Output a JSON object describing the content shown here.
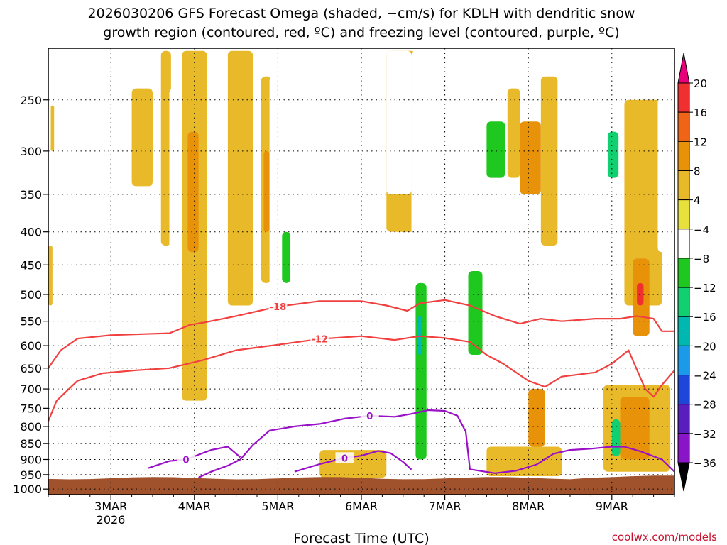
{
  "title_line1": "2026030206 GFS Forecast Omega (shaded, −cm/s) for KDLH with dendritic snow",
  "title_line2": "growth region (contoured, red, ºC) and freezing level (contoured, purple, ºC)",
  "xlabel": "Forecast Time (UTC)",
  "credit": "coolwx.com/models",
  "chart_data": {
    "type": "heatmap",
    "title": "2026030206 GFS Forecast Omega (shaded, −cm/s) for KDLH with dendritic snow growth region (contoured, red, ºC) and freezing level (contoured, purple, ºC)",
    "xlabel": "Forecast Time (UTC)",
    "ylabel": "",
    "y_axis": {
      "scale": "pressure (hPa), inverted",
      "ticks": [
        250,
        300,
        350,
        400,
        450,
        500,
        550,
        600,
        650,
        700,
        750,
        800,
        850,
        900,
        950,
        1000
      ],
      "tick_labels": [
        "250",
        "300",
        "350",
        "400",
        "450",
        "500",
        "550",
        "600",
        "650",
        "700",
        "750",
        "800",
        "850",
        "900",
        "950",
        "1000"
      ],
      "range": [
        208,
        1020
      ]
    },
    "x_axis": {
      "range_days": [
        2.25,
        9.75
      ],
      "ticks": [
        3,
        4,
        5,
        6,
        7,
        8,
        9
      ],
      "tick_labels": [
        "3MAR",
        "4MAR",
        "5MAR",
        "6MAR",
        "7MAR",
        "8MAR",
        "9MAR"
      ],
      "year_label": "2026"
    },
    "grid": true,
    "colorbar": {
      "levels": [
        -36,
        -32,
        -28,
        -24,
        -20,
        -16,
        -12,
        -8,
        -4,
        4,
        8,
        12,
        16,
        20
      ],
      "labels": [
        "20",
        "16",
        "12",
        "8",
        "4",
        "−4",
        "−8",
        "−12",
        "−16",
        "−20",
        "−24",
        "−28",
        "−32",
        "−36"
      ],
      "colors": [
        "#e8007a",
        "#f03030",
        "#f06418",
        "#e8920a",
        "#e8ba2a",
        "#e8e03c",
        "#ffffff",
        "#1ec81e",
        "#10d070",
        "#00b8b0",
        "#1a9ae8",
        "#1e46d8",
        "#5a1ebe",
        "#8a14c8",
        "#b4b4b4",
        "#000000"
      ]
    },
    "terrain_color": "#a0522d",
    "omega_regions": [
      {
        "x": [
          2.28,
          2.32
        ],
        "p": [
          255,
          300
        ],
        "value": 5
      },
      {
        "x": [
          2.25,
          2.3
        ],
        "p": [
          420,
          520
        ],
        "value": 5
      },
      {
        "x": [
          3.15,
          3.25
        ],
        "p": [
          270,
          420
        ],
        "value": -5
      },
      {
        "x": [
          3.25,
          3.5
        ],
        "p": [
          240,
          340
        ],
        "value": 5
      },
      {
        "x": [
          3.6,
          3.72
        ],
        "p": [
          210,
          420
        ],
        "value": 6
      },
      {
        "x": [
          3.7,
          3.82
        ],
        "p": [
          240,
          500
        ],
        "value": -6
      },
      {
        "x": [
          3.85,
          4.15
        ],
        "p": [
          210,
          730
        ],
        "value": 6
      },
      {
        "x": [
          3.92,
          4.05
        ],
        "p": [
          280,
          430
        ],
        "value": 10
      },
      {
        "x": [
          4.4,
          4.7
        ],
        "p": [
          210,
          520
        ],
        "value": 6
      },
      {
        "x": [
          4.8,
          4.92
        ],
        "p": [
          230,
          480
        ],
        "value": 6
      },
      {
        "x": [
          4.83,
          4.9
        ],
        "p": [
          300,
          400
        ],
        "value": 10
      },
      {
        "x": [
          4.9,
          5.2
        ],
        "p": [
          230,
          520
        ],
        "value": -6
      },
      {
        "x": [
          5.05,
          5.15
        ],
        "p": [
          400,
          480
        ],
        "value": -10
      },
      {
        "x": [
          4.85,
          4.97
        ],
        "p": [
          780,
          860
        ],
        "value": -6
      },
      {
        "x": [
          5.5,
          6.3
        ],
        "p": [
          870,
          960
        ],
        "value": 5
      },
      {
        "x": [
          5.95,
          6.2
        ],
        "p": [
          220,
          500
        ],
        "value": -6
      },
      {
        "x": [
          6.3,
          6.65
        ],
        "p": [
          210,
          400
        ],
        "value": 5
      },
      {
        "x": [
          6.3,
          6.6
        ],
        "p": [
          210,
          350
        ],
        "value": -6
      },
      {
        "x": [
          6.6,
          6.95
        ],
        "p": [
          210,
          920
        ],
        "value": -6
      },
      {
        "x": [
          6.65,
          6.78
        ],
        "p": [
          480,
          900
        ],
        "value": -12
      },
      {
        "x": [
          6.68,
          6.72
        ],
        "p": [
          540,
          620
        ],
        "value": -18
      },
      {
        "x": [
          6.95,
          7.25
        ],
        "p": [
          210,
          320
        ],
        "value": -6
      },
      {
        "x": [
          7.25,
          7.8
        ],
        "p": [
          440,
          700
        ],
        "value": -6
      },
      {
        "x": [
          7.28,
          7.45
        ],
        "p": [
          460,
          620
        ],
        "value": -12
      },
      {
        "x": [
          7.5,
          7.72
        ],
        "p": [
          270,
          330
        ],
        "value": -12
      },
      {
        "x": [
          7.75,
          7.9
        ],
        "p": [
          240,
          330
        ],
        "value": 5
      },
      {
        "x": [
          7.9,
          8.15
        ],
        "p": [
          270,
          350
        ],
        "value": 10
      },
      {
        "x": [
          8.15,
          8.35
        ],
        "p": [
          230,
          420
        ],
        "value": 5
      },
      {
        "x": [
          7.5,
          8.4
        ],
        "p": [
          860,
          955
        ],
        "value": 5
      },
      {
        "x": [
          8.0,
          8.2
        ],
        "p": [
          700,
          860
        ],
        "value": 10
      },
      {
        "x": [
          8.4,
          8.8
        ],
        "p": [
          310,
          360
        ],
        "value": -6
      },
      {
        "x": [
          8.85,
          9.15
        ],
        "p": [
          240,
          420
        ],
        "value": -6
      },
      {
        "x": [
          8.95,
          9.08
        ],
        "p": [
          280,
          330
        ],
        "value": -14
      },
      {
        "x": [
          9.05,
          9.2
        ],
        "p": [
          420,
          600
        ],
        "value": -6
      },
      {
        "x": [
          9.15,
          9.6
        ],
        "p": [
          250,
          520
        ],
        "value": 5
      },
      {
        "x": [
          9.25,
          9.45
        ],
        "p": [
          440,
          580
        ],
        "value": 10
      },
      {
        "x": [
          9.3,
          9.38
        ],
        "p": [
          480,
          520
        ],
        "value": 18
      },
      {
        "x": [
          8.9,
          9.7
        ],
        "p": [
          690,
          940
        ],
        "value": 6
      },
      {
        "x": [
          9.1,
          9.45
        ],
        "p": [
          720,
          900
        ],
        "value": 10
      },
      {
        "x": [
          9.0,
          9.1
        ],
        "p": [
          780,
          890
        ],
        "value": -14
      },
      {
        "x": [
          9.55,
          9.72
        ],
        "p": [
          220,
          430
        ],
        "value": -6
      }
    ],
    "contours": [
      {
        "color": "red",
        "label": "-18",
        "points": [
          [
            2.25,
            650
          ],
          [
            2.4,
            610
          ],
          [
            2.6,
            585
          ],
          [
            3.0,
            578
          ],
          [
            3.5,
            575
          ],
          [
            3.7,
            574
          ],
          [
            3.95,
            557
          ],
          [
            4.1,
            553
          ],
          [
            4.5,
            540
          ],
          [
            5.0,
            522
          ],
          [
            5.5,
            512
          ],
          [
            6.0,
            512
          ],
          [
            6.3,
            520
          ],
          [
            6.55,
            530
          ],
          [
            6.7,
            516
          ],
          [
            7.0,
            510
          ],
          [
            7.3,
            520
          ],
          [
            7.6,
            540
          ],
          [
            7.9,
            555
          ],
          [
            8.15,
            545
          ],
          [
            8.4,
            550
          ],
          [
            8.8,
            545
          ],
          [
            9.1,
            545
          ],
          [
            9.3,
            540
          ],
          [
            9.5,
            545
          ],
          [
            9.6,
            570
          ],
          [
            9.75,
            570
          ]
        ]
      },
      {
        "color": "red",
        "label": "-12",
        "points": [
          [
            2.25,
            785
          ],
          [
            2.35,
            730
          ],
          [
            2.6,
            680
          ],
          [
            2.9,
            662
          ],
          [
            3.3,
            655
          ],
          [
            3.7,
            650
          ],
          [
            4.1,
            632
          ],
          [
            4.5,
            610
          ],
          [
            5.0,
            598
          ],
          [
            5.5,
            586
          ],
          [
            6.0,
            580
          ],
          [
            6.4,
            588
          ],
          [
            6.7,
            580
          ],
          [
            7.0,
            584
          ],
          [
            7.3,
            592
          ],
          [
            7.5,
            620
          ],
          [
            7.7,
            640
          ],
          [
            8.0,
            680
          ],
          [
            8.2,
            695
          ],
          [
            8.4,
            670
          ],
          [
            8.8,
            660
          ],
          [
            9.0,
            640
          ],
          [
            9.2,
            610
          ],
          [
            9.4,
            700
          ],
          [
            9.5,
            720
          ],
          [
            9.6,
            690
          ],
          [
            9.75,
            655
          ]
        ]
      },
      {
        "color": "purple",
        "label": "0",
        "points": [
          [
            4.05,
            960
          ],
          [
            4.2,
            940
          ],
          [
            4.4,
            920
          ],
          [
            4.55,
            900
          ],
          [
            4.7,
            855
          ],
          [
            4.9,
            812
          ],
          [
            5.2,
            800
          ],
          [
            5.5,
            793
          ],
          [
            5.8,
            778
          ],
          [
            6.1,
            770
          ],
          [
            6.4,
            773
          ],
          [
            6.6,
            765
          ],
          [
            6.8,
            755
          ],
          [
            7.0,
            757
          ],
          [
            7.15,
            770
          ],
          [
            7.25,
            815
          ],
          [
            7.3,
            932
          ],
          [
            7.6,
            945
          ],
          [
            7.85,
            937
          ],
          [
            8.1,
            916
          ],
          [
            8.3,
            882
          ],
          [
            8.5,
            870
          ],
          [
            8.75,
            866
          ],
          [
            9.0,
            860
          ],
          [
            9.15,
            860
          ],
          [
            9.35,
            875
          ],
          [
            9.6,
            900
          ],
          [
            9.75,
            940
          ]
        ]
      },
      {
        "color": "purple",
        "label": "0",
        "points": [
          [
            3.45,
            928
          ],
          [
            3.7,
            905
          ],
          [
            3.9,
            900
          ],
          [
            4.2,
            870
          ],
          [
            4.4,
            860
          ],
          [
            4.55,
            893
          ]
        ]
      },
      {
        "color": "purple",
        "label": "0",
        "points": [
          [
            5.2,
            940
          ],
          [
            5.5,
            915
          ],
          [
            5.8,
            895
          ],
          [
            6.0,
            888
          ],
          [
            6.2,
            873
          ],
          [
            6.35,
            880
          ],
          [
            6.5,
            908
          ],
          [
            6.6,
            933
          ]
        ]
      }
    ]
  }
}
